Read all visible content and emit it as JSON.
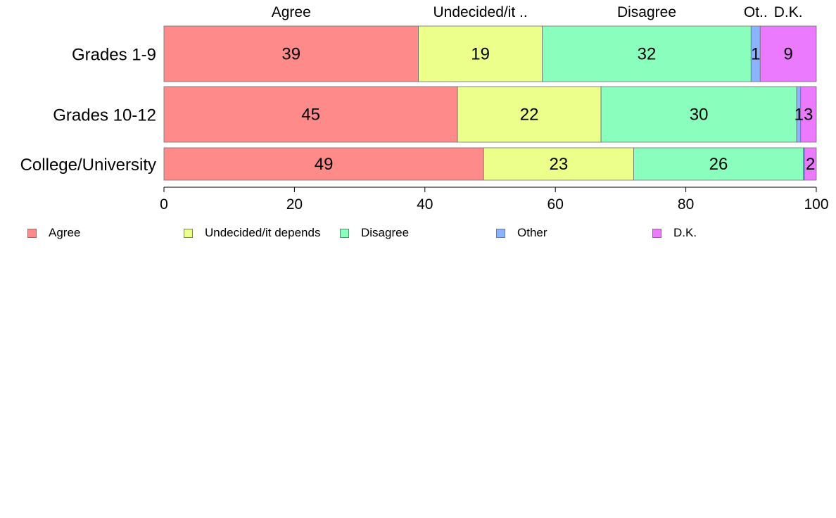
{
  "chart_data": {
    "type": "bar",
    "orientation": "horizontal",
    "stacked": true,
    "categories": [
      "Grades 1-9",
      "Grades 10-12",
      "College/University"
    ],
    "series": [
      {
        "name": "Agree",
        "short_label": "Agree",
        "color": "#ff8a8a",
        "values": [
          39,
          45,
          49
        ],
        "display": [
          "39",
          "45",
          "49"
        ]
      },
      {
        "name": "Undecided/it depends",
        "short_label": "Undecided/it ..",
        "color": "#ebff8a",
        "values": [
          19,
          22,
          23
        ],
        "display": [
          "19",
          "22",
          "23"
        ]
      },
      {
        "name": "Disagree",
        "short_label": "Disagree",
        "color": "#8affbd",
        "values": [
          32,
          30,
          26
        ],
        "display": [
          "32",
          "30",
          "26"
        ]
      },
      {
        "name": "Other",
        "short_label": "Ot..",
        "color": "#8ab4ff",
        "values": [
          1.4,
          0.6,
          0.2
        ],
        "display": [
          "1",
          "",
          ""
        ]
      },
      {
        "name": "D.K.",
        "short_label": "D.K.",
        "color": "#eb7aff",
        "values": [
          8.6,
          2.4,
          1.8
        ],
        "display": [
          "9",
          "",
          "2"
        ]
      }
    ],
    "annotations": [
      {
        "category": "Grades 10-12",
        "text": "13"
      }
    ],
    "xlim": [
      0,
      100
    ],
    "xticks": [
      0,
      20,
      40,
      60,
      80,
      100
    ],
    "legend_position": "bottom",
    "grid": false
  }
}
